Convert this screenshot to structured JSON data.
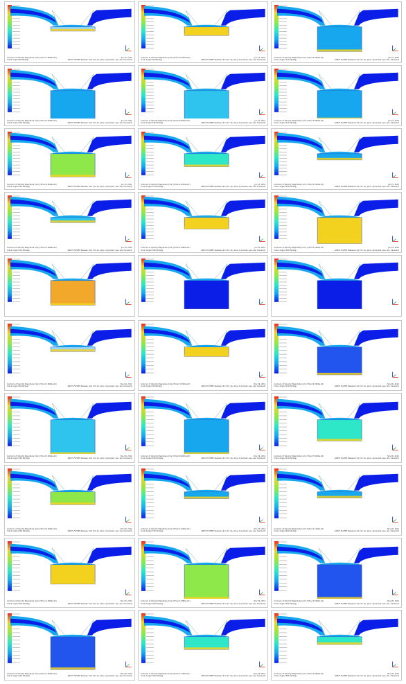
{
  "figure": {
    "colors": {
      "low": "#0a1ee8",
      "midlow": "#17a7ee",
      "mid": "#2ee6c8",
      "midhigh": "#8ee84a",
      "high": "#f2d21f",
      "max": "#e8281e",
      "frame": "#c8c8c8",
      "caption": "#333333"
    },
    "groups": [
      {
        "name": "group-a",
        "panels": [
          {
            "id": "a1",
            "piston": 0.05,
            "fill": "#9ad4f4",
            "caption": "Contours of Velocity Magnitude (m/s)  (Time=1.8000e-02)",
            "caption2": "Crank Angle=60.00(deg)",
            "date": "Jun 23, 2012",
            "meta": "ANSYS FLUENT Release 14.0 (3d, dp, pbns, dynamesh, spe, ske, transient)"
          },
          {
            "id": "a2",
            "piston": 0.2,
            "fill": "#f2d21f",
            "caption": "Contours of Velocity Magnitude (m/s)  (Time=3.1500e-02)",
            "caption2": "Crank Angle=90.00(deg)",
            "date": "Jun 23, 2012",
            "meta": "ANSYS FLUENT Release 14.0 (3d, dp, pbns, dynamesh, spe, ske, transient)"
          },
          {
            "id": "a3",
            "piston": 0.75,
            "fill": "#17a7ee",
            "caption": "Contours of Velocity Magnitude (m/s)  (Time=4.3000e-02)",
            "caption2": "Crank Angle=120.00(deg)",
            "date": "Jun 23, 2012",
            "meta": "ANSYS FLUENT Release 14.0 (3d, dp, pbns, dynamesh, spe, ske, transient)"
          },
          {
            "id": "a4",
            "piston": 0.95,
            "fill": "#17a7ee",
            "caption": "Contours of Velocity Magnitude (m/s)  (Time=5.4000e-02)",
            "caption2": "Crank Angle=150.00(deg)",
            "date": "Jun 23, 2012",
            "meta": "ANSYS FLUENT Release 14.0 (3d, dp, pbns, dynamesh, spe, ske, transient)"
          },
          {
            "id": "a5",
            "piston": 0.95,
            "fill": "#2ec4ee",
            "caption": "Contours of Velocity Magnitude (m/s)  (Time=6.6000e-02)",
            "caption2": "Crank Angle=180.00(deg)",
            "date": "Jun 23, 2012",
            "meta": "ANSYS FLUENT Release 14.0 (3d, dp, pbns, dynamesh, spe, ske, transient)"
          },
          {
            "id": "a6",
            "piston": 0.9,
            "fill": "#17a7ee",
            "caption": "Contours of Velocity Magnitude (m/s)  (Time=7.8000e-02)",
            "caption2": "Crank Angle=210.00(deg)",
            "date": "Jun 23, 2012",
            "meta": "ANSYS FLUENT Release 14.0 (3d, dp, pbns, dynamesh, spe, ske, transient)"
          },
          {
            "id": "a7",
            "piston": 0.7,
            "fill": "#8ee84a",
            "caption": "Contours of Velocity Magnitude (m/s)  (Time=9.0000e-02)",
            "caption2": "Crank Angle=240.00(deg)",
            "date": "Jun 23, 2012",
            "meta": "ANSYS FLUENT Release 14.0 (3d, dp, pbns, dynamesh, spe, ske, transient)"
          },
          {
            "id": "a8",
            "piston": 0.35,
            "fill": "#2ee6c8",
            "caption": "Contours of Velocity Magnitude (m/s)  (Time=1.0200e-01)",
            "caption2": "Crank Angle=270.00(deg)",
            "date": "Jun 23, 2012",
            "meta": "ANSYS FLUENT Release 14.0 (3d, dp, pbns, dynamesh, spe, ske, transient)"
          },
          {
            "id": "a9",
            "piston": 0.12,
            "fill": "#17a7ee",
            "caption": "Contours of Velocity Magnitude (m/s)  (Time=1.1400e-01)",
            "caption2": "Crank Angle=300.00(deg)",
            "date": "Jun 23, 2012",
            "meta": "ANSYS FLUENT Release 14.0 (3d, dp, pbns, dynamesh, spe, ske, transient)"
          },
          {
            "id": "a10",
            "piston": 0.08,
            "fill": "#2ec4ee",
            "caption": "Contours of Velocity Magnitude (m/s)  (Time=1.2600e-01)",
            "caption2": "Crank Angle=330.00(deg)",
            "date": "Jun 23, 2012",
            "meta": "ANSYS FLUENT Release 14.0 (3d, dp, pbns, dynamesh, spe, ske, transient)"
          },
          {
            "id": "a11",
            "piston": 0.3,
            "fill": "#f2d21f",
            "caption": "Contours of Velocity Magnitude (m/s)  (Time=1.3800e-01)",
            "caption2": "Crank Angle=360.00(deg)",
            "date": "Jun 23, 2012",
            "meta": "ANSYS FLUENT Release 14.0 (3d, dp, pbns, dynamesh, spe, ske, transient)"
          },
          {
            "id": "a12",
            "piston": 0.8,
            "fill": "#f2d21f",
            "caption": "Contours of Velocity Magnitude (m/s)  (Time=1.5000e-01)",
            "caption2": "Crank Angle=390.00(deg)",
            "date": "Jun 23, 2012",
            "meta": "ANSYS FLUENT Release 14.0 (3d, dp, pbns, dynamesh, spe, ske, transient)"
          },
          {
            "id": "a13",
            "piston": 0.75,
            "fill": "#f2a82a",
            "caption": "",
            "caption2": "",
            "date": "",
            "meta": ""
          },
          {
            "id": "a14",
            "piston": 0.95,
            "fill": "#0a1ee8",
            "caption": "",
            "caption2": "",
            "date": "",
            "meta": ""
          },
          {
            "id": "a15",
            "piston": 0.95,
            "fill": "#0a1ee8",
            "caption": "",
            "caption2": "",
            "date": "",
            "meta": ""
          }
        ]
      },
      {
        "name": "group-b",
        "panels": [
          {
            "id": "b1",
            "piston": 0.05,
            "fill": "#9ad4f4",
            "caption": "Contours of Velocity Magnitude (m/s)  (Time=1.8000e-02)",
            "caption2": "Crank Angle=60.00(deg)",
            "date": "Nov 09, 2012",
            "meta": "ANSYS FLUENT Release 14.0 (3d, dp, pbns, dynamesh, spe, ske, transient)"
          },
          {
            "id": "b2",
            "piston": 0.2,
            "fill": "#f2d21f",
            "caption": "Contours of Velocity Magnitude (m/s)  (Time=3.1500e-02)",
            "caption2": "Crank Angle=90.00(deg)",
            "date": "Nov 09, 2012",
            "meta": "ANSYS FLUENT Release 14.0 (3d, dp, pbns, dynamesh, spe, ske, transient)"
          },
          {
            "id": "b3",
            "piston": 0.75,
            "fill": "#2255ee",
            "caption": "Contours of Velocity Magnitude (m/s)  (Time=4.3000e-02)",
            "caption2": "Crank Angle=120.00(deg)",
            "date": "Nov 09, 2012",
            "meta": "ANSYS FLUENT Release 14.0 (3d, dp, pbns, dynamesh, spe, ske, transient)"
          },
          {
            "id": "b4",
            "piston": 0.95,
            "fill": "#2ec4ee",
            "caption": "Contours of Velocity Magnitude (m/s)  (Time=5.4000e-02)",
            "caption2": "Crank Angle=150.00(deg)",
            "date": "Nov 09, 2012",
            "meta": "ANSYS FLUENT Release 14.0 (3d, dp, pbns, dynamesh, spe, ske, transient)"
          },
          {
            "id": "b5",
            "piston": 0.95,
            "fill": "#17a7ee",
            "caption": "Contours of Velocity Magnitude (m/s)  (Time=6.6000e-02)",
            "caption2": "Crank Angle=180.00(deg)",
            "date": "Nov 09, 2012",
            "meta": "ANSYS FLUENT Release 14.0 (3d, dp, pbns, dynamesh, spe, ske, transient)"
          },
          {
            "id": "b6",
            "piston": 0.55,
            "fill": "#2ee6c8",
            "caption": "Contours of Velocity Magnitude (m/s)  (Time=7.8000e-02)",
            "caption2": "Crank Angle=210.00(deg)",
            "date": "Nov 09, 2012",
            "meta": "ANSYS FLUENT Release 14.0 (3d, dp, pbns, dynamesh, spe, ske, transient)"
          },
          {
            "id": "b7",
            "piston": 0.3,
            "fill": "#8ee84a",
            "caption": "Contours of Velocity Magnitude (m/s)  (Time=9.0000e-02)",
            "caption2": "Crank Angle=240.00(deg)",
            "date": "Nov 09, 2012",
            "meta": "ANSYS FLUENT Release 14.0 (3d, dp, pbns, dynamesh, spe, ske, transient)"
          },
          {
            "id": "b8",
            "piston": 0.12,
            "fill": "#17a7ee",
            "caption": "Contours of Velocity Magnitude (m/s)  (Time=1.0200e-01)",
            "caption2": "Crank Angle=270.00(deg)",
            "date": "Nov 09, 2012",
            "meta": "ANSYS FLUENT Release 14.0 (3d, dp, pbns, dynamesh, spe, ske, transient)"
          },
          {
            "id": "b9",
            "piston": 0.1,
            "fill": "#17a7ee",
            "caption": "Contours of Velocity Magnitude (m/s)  (Time=1.1400e-01)",
            "caption2": "Crank Angle=300.00(deg)",
            "date": "Nov 09, 2012",
            "meta": "ANSYS FLUENT Release 14.0 (3d, dp, pbns, dynamesh, spe, ske, transient)"
          },
          {
            "id": "b10",
            "piston": 0.5,
            "fill": "#f2d21f",
            "caption": "Contours of Velocity Magnitude (m/s)  (Time=1.2600e-01)",
            "caption2": "Crank Angle=330.00(deg)",
            "date": "Nov 09, 2012",
            "meta": "ANSYS FLUENT Release 14.0 (3d, dp, pbns, dynamesh, spe, ske, transient)"
          },
          {
            "id": "b11",
            "piston": 0.95,
            "fill": "#8ee84a",
            "caption": "Contours of Velocity Magnitude (m/s)  (Time=1.3800e-01)",
            "caption2": "Crank Angle=360.00(deg)",
            "date": "Nov 09, 2012",
            "meta": "ANSYS FLUENT Release 14.0 (3d, dp, pbns, dynamesh, spe, ske, transient)"
          },
          {
            "id": "b12",
            "piston": 0.95,
            "fill": "#2255ee",
            "caption": "Contours of Velocity Magnitude (m/s)  (Time=1.5000e-01)",
            "caption2": "Crank Angle=390.00(deg)",
            "date": "Nov 09, 2012",
            "meta": "ANSYS FLUENT Release 14.0 (3d, dp, pbns, dynamesh, spe, ske, transient)"
          },
          {
            "id": "b13",
            "piston": 0.9,
            "fill": "#2255ee",
            "caption": "Contours of Velocity Magnitude (m/s)  (Time=1.6200e-01)",
            "caption2": "Crank Angle=420.00(deg)",
            "date": "Nov 09, 2012",
            "meta": "ANSYS FLUENT Release 14.0 (3d, dp, pbns, dynamesh, spe, ske, transient)"
          },
          {
            "id": "b14",
            "piston": 0.3,
            "fill": "#2ee6c8",
            "caption": "Contours of Velocity Magnitude (m/s)  (Time=1.7400e-01)",
            "caption2": "Crank Angle=450.00(deg)",
            "date": "Nov 09, 2012",
            "meta": "ANSYS FLUENT Release 14.0 (3d, dp, pbns, dynamesh, spe, ske, transient)"
          },
          {
            "id": "b15",
            "piston": 0.15,
            "fill": "#2ee6c8",
            "caption": "Contours of Velocity Magnitude (m/s)  (Time=1.8600e-01)",
            "caption2": "Crank Angle=480.00(deg)",
            "date": "Nov 09, 2012",
            "meta": "ANSYS FLUENT Release 14.0 (3d, dp, pbns, dynamesh, spe, ske, transient)"
          }
        ]
      }
    ]
  }
}
